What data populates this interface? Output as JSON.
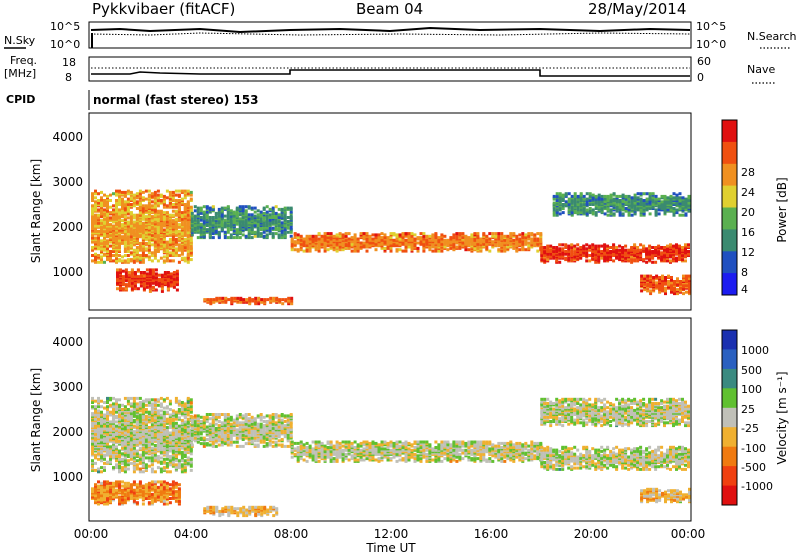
{
  "header": {
    "station": "Pykkvibaer (fitACF)",
    "beam": "Beam 04",
    "date": "28/May/2014"
  },
  "noise_panel": {
    "left_label": "N.Sky",
    "right_label": "N.Search",
    "left_ticks": [
      "10^5",
      "10^0"
    ],
    "right_ticks": [
      "10^5",
      "10^0"
    ]
  },
  "freq_panel": {
    "left_label_1": "Freq.",
    "left_label_2": "[MHz]",
    "left_ticks": [
      "18",
      "8"
    ],
    "right_label": "Nave",
    "right_ticks": [
      "60",
      "0"
    ]
  },
  "cpid_panel": {
    "label": "CPID",
    "mode": "normal (fast stereo) 153"
  },
  "power_panel": {
    "ylabel": "Slant Range [km]",
    "yticks": [
      "4000",
      "3000",
      "2000",
      "1000"
    ],
    "colorbar_label": "Power [dB]",
    "colorbar_ticks": [
      "28",
      "24",
      "20",
      "16",
      "12",
      "8",
      "4"
    ]
  },
  "velocity_panel": {
    "ylabel": "Slant Range [km]",
    "yticks": [
      "4000",
      "3000",
      "2000",
      "1000"
    ],
    "colorbar_label": "Velocity [m s⁻¹]",
    "colorbar_ticks": [
      "1000",
      "500",
      "100",
      "25",
      "-25",
      "-100",
      "-500",
      "-1000"
    ]
  },
  "x_axis": {
    "label": "Time UT",
    "ticks": [
      "00:00",
      "04:00",
      "08:00",
      "12:00",
      "16:00",
      "20:00",
      "00:00"
    ]
  },
  "colors": {
    "power_scale": [
      "#1c1cf0",
      "#2050c0",
      "#3a8a70",
      "#5ab050",
      "#e0d030",
      "#f09020",
      "#f05010",
      "#e01010"
    ],
    "velocity_scale": [
      "#e01010",
      "#f04010",
      "#f07a10",
      "#f0b030",
      "#c0c0b8",
      "#60c030",
      "#3a8a80",
      "#2a60c0",
      "#1a30b0"
    ]
  },
  "chart_data": [
    {
      "type": "heatmap",
      "title": "Power",
      "xlabel": "Time UT",
      "ylabel": "Slant Range [km]",
      "xlim": [
        "00:00",
        "24:00"
      ],
      "ylim": [
        200,
        4600
      ],
      "colorbar": {
        "label": "Power [dB]",
        "range": [
          0,
          30
        ]
      },
      "bands": [
        {
          "t0": 0.0,
          "t1": 4.0,
          "r_center": 2100,
          "r_width": 1600,
          "level": 20
        },
        {
          "t0": 1.0,
          "t1": 3.5,
          "r_center": 900,
          "r_width": 500,
          "level": 26
        },
        {
          "t0": 4.0,
          "t1": 8.0,
          "r_center": 2200,
          "r_width": 700,
          "level": 10
        },
        {
          "t0": 4.5,
          "t1": 8.0,
          "r_center": 450,
          "r_width": 150,
          "level": 24
        },
        {
          "t0": 8.0,
          "t1": 18.0,
          "r_center": 1750,
          "r_width": 400,
          "level": 22
        },
        {
          "t0": 18.0,
          "t1": 24.0,
          "r_center": 1500,
          "r_width": 400,
          "level": 26
        },
        {
          "t0": 18.5,
          "t1": 24.0,
          "r_center": 2600,
          "r_width": 500,
          "level": 10
        },
        {
          "t0": 22.0,
          "t1": 24.0,
          "r_center": 800,
          "r_width": 400,
          "level": 24
        }
      ]
    },
    {
      "type": "heatmap",
      "title": "Velocity",
      "xlabel": "Time UT",
      "ylabel": "Slant Range [km]",
      "xlim": [
        "00:00",
        "24:00"
      ],
      "ylim": [
        200,
        4600
      ],
      "colorbar": {
        "label": "Velocity [m s⁻¹]",
        "range": [
          -1000,
          1000
        ]
      },
      "bands": [
        {
          "t0": 0.0,
          "t1": 4.0,
          "r_center": 2100,
          "r_width": 1600,
          "level": 0
        },
        {
          "t0": 0.0,
          "t1": 3.5,
          "r_center": 850,
          "r_width": 500,
          "level": -400
        },
        {
          "t0": 4.0,
          "t1": 8.0,
          "r_center": 2200,
          "r_width": 700,
          "level": 0
        },
        {
          "t0": 4.5,
          "t1": 7.5,
          "r_center": 450,
          "r_width": 200,
          "level": -200
        },
        {
          "t0": 8.0,
          "t1": 18.0,
          "r_center": 1750,
          "r_width": 450,
          "level": 0
        },
        {
          "t0": 18.0,
          "t1": 24.0,
          "r_center": 1600,
          "r_width": 500,
          "level": 0
        },
        {
          "t0": 18.0,
          "t1": 24.0,
          "r_center": 2600,
          "r_width": 600,
          "level": 0
        },
        {
          "t0": 22.0,
          "t1": 24.0,
          "r_center": 800,
          "r_width": 300,
          "level": -200
        }
      ]
    }
  ]
}
